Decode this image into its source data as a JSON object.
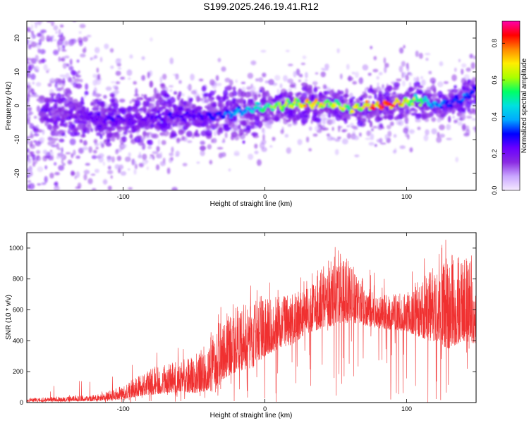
{
  "title": "S199.2025.246.19.41.R12",
  "chart_data": [
    {
      "type": "heatmap",
      "panel": "top",
      "xlabel": "Height of straight line (km)",
      "ylabel": "Frequency (Hz)",
      "xlim": [
        -168,
        149
      ],
      "ylim": [
        -25,
        25
      ],
      "xticks": [
        -100,
        0,
        100
      ],
      "yticks": [
        -20,
        -10,
        0,
        10,
        20
      ],
      "colorbar": {
        "label": "Normalized spectral amplitude",
        "range": [
          0,
          0.92
        ],
        "ticks": [
          "0.0",
          "0.2",
          "0.4",
          "0.6",
          "0.8"
        ],
        "colormap": [
          "#f5eaff",
          "#c9a6ff",
          "#8a2be2",
          "#6a00ff",
          "#0000ff",
          "#00aaff",
          "#00e0e0",
          "#00ff66",
          "#aaff00",
          "#ffee00",
          "#ff8800",
          "#ff0000",
          "#ff00aa"
        ]
      },
      "ridge": {
        "x": [
          -150,
          -130,
          -110,
          -90,
          -70,
          -50,
          -35,
          -20,
          -10,
          0,
          10,
          20,
          30,
          40,
          50,
          60,
          70,
          80,
          90,
          100,
          110,
          120,
          130,
          140,
          149
        ],
        "frequency": [
          -2,
          -3,
          -4,
          -4,
          -3,
          -3,
          -3,
          -2,
          -1,
          -0.5,
          0,
          0.5,
          0.5,
          0.5,
          0.5,
          -1,
          -0.5,
          0,
          0.5,
          1,
          2,
          0,
          1,
          2,
          5
        ],
        "amplitude": [
          0.15,
          0.2,
          0.25,
          0.22,
          0.25,
          0.25,
          0.3,
          0.4,
          0.45,
          0.55,
          0.6,
          0.65,
          0.75,
          0.7,
          0.65,
          0.6,
          0.75,
          0.8,
          0.8,
          0.7,
          0.55,
          0.4,
          0.35,
          0.35,
          0.3
        ]
      }
    },
    {
      "type": "line",
      "panel": "bottom",
      "xlabel": "Height of straight line (km)",
      "ylabel": "SNR (10 * v/v)",
      "xlim": [
        -168,
        149
      ],
      "ylim": [
        0,
        1100
      ],
      "xticks": [
        -100,
        0,
        100
      ],
      "yticks": [
        0,
        200,
        400,
        600,
        800,
        1000
      ],
      "series_color": "#f03030",
      "envelope": {
        "x": [
          -168,
          -140,
          -120,
          -100,
          -90,
          -80,
          -70,
          -60,
          -50,
          -40,
          -35,
          -30,
          -20,
          -10,
          0,
          10,
          20,
          30,
          40,
          50,
          60,
          70,
          80,
          90,
          100,
          110,
          120,
          130,
          140,
          149
        ],
        "lower": [
          5,
          8,
          10,
          20,
          40,
          50,
          60,
          70,
          60,
          80,
          60,
          150,
          200,
          220,
          300,
          350,
          380,
          450,
          480,
          500,
          520,
          500,
          480,
          470,
          460,
          420,
          380,
          350,
          400,
          380
        ],
        "upper": [
          30,
          40,
          50,
          110,
          170,
          220,
          250,
          280,
          300,
          400,
          480,
          560,
          620,
          650,
          680,
          700,
          700,
          760,
          900,
          950,
          920,
          800,
          700,
          700,
          720,
          800,
          900,
          950,
          980,
          950
        ]
      }
    }
  ]
}
